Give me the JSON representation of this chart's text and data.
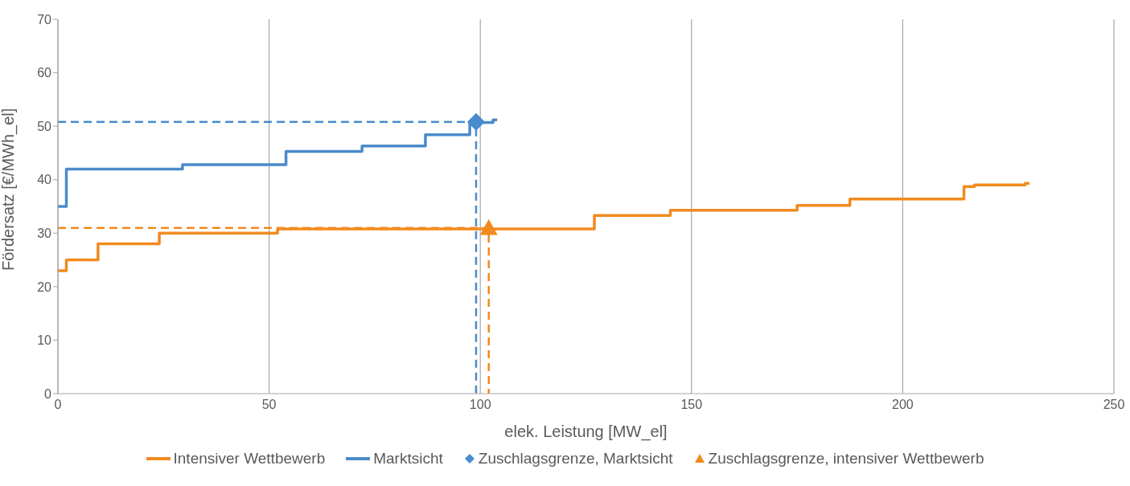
{
  "chart_data": {
    "type": "step",
    "xlabel": "elek. Leistung [MW_el]",
    "ylabel": "Fördersatz [€/MWh_el]",
    "xlim": [
      0,
      250
    ],
    "ylim": [
      0,
      70
    ],
    "xticks": [
      0,
      50,
      100,
      150,
      200,
      250
    ],
    "yticks": [
      0,
      10,
      20,
      30,
      40,
      50,
      60,
      70
    ],
    "grid": "x",
    "legend": "bottom",
    "marker": "none",
    "series": [
      {
        "name": "Intensiver Wettbewerb",
        "color": "#f28a1e",
        "x": [
          0,
          2,
          9.5,
          24,
          52,
          127,
          145,
          175,
          187.5,
          214.5,
          217,
          229,
          230
        ],
        "values": [
          23,
          25,
          28,
          30,
          30.8,
          33.3,
          34.3,
          35.2,
          36.4,
          38.7,
          39,
          39.3,
          39.3
        ]
      },
      {
        "name": "Marktsicht",
        "color": "#4a8bcb",
        "x": [
          0,
          2,
          29.5,
          54,
          72,
          87,
          97.5,
          103,
          104
        ],
        "values": [
          35,
          42,
          42.8,
          45.3,
          46.3,
          48.4,
          50.7,
          51.2,
          51.2
        ]
      },
      {
        "color": "#4a8bcb",
        "type": "line",
        "line_style": "dashed",
        "x": [
          0,
          99,
          99
        ],
        "values": [
          50.8,
          50.8,
          0
        ]
      },
      {
        "color": "#f28a1e",
        "type": "line",
        "line_style": "dashed",
        "x": [
          0,
          102,
          102
        ],
        "values": [
          31,
          31,
          0
        ]
      },
      {
        "name": "Zuschlagsgrenze, Marktsicht",
        "color": "#4a8bcb",
        "type": "scatter",
        "marker": "diamond",
        "x": [
          99
        ],
        "values": [
          50.8
        ]
      },
      {
        "name": "Zuschlagsgrenze, intensiver Wettbewerb",
        "color": "#f28a1e",
        "type": "scatter",
        "marker": "triangle",
        "x": [
          102
        ],
        "values": [
          31
        ]
      }
    ]
  }
}
